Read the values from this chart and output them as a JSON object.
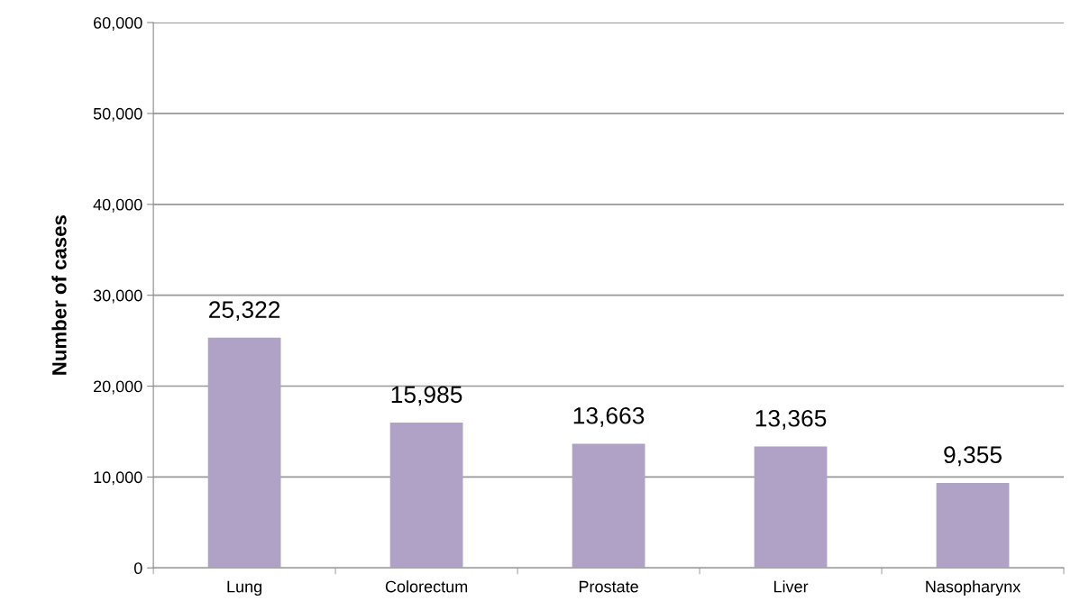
{
  "chart_data": {
    "type": "bar",
    "ylabel": "Number of cases",
    "categories": [
      "Lung",
      "Colorectum",
      "Prostate",
      "Liver",
      "Nasopharynx"
    ],
    "values": [
      25322,
      15985,
      13663,
      13365,
      9355
    ],
    "value_labels": [
      "25,322",
      "15,985",
      "13,663",
      "13,365",
      "9,355"
    ],
    "color": "#b0a2c6",
    "ylim": [
      0,
      60000
    ],
    "yticks": [
      {
        "value": 0,
        "label": "0"
      },
      {
        "value": 10000,
        "label": "10,000"
      },
      {
        "value": 20000,
        "label": "20,000"
      },
      {
        "value": 30000,
        "label": "30,000"
      },
      {
        "value": 40000,
        "label": "40,000"
      },
      {
        "value": 50000,
        "label": "50,000"
      },
      {
        "value": 60000,
        "label": "60,000"
      }
    ],
    "grid": "y",
    "legend": false
  }
}
